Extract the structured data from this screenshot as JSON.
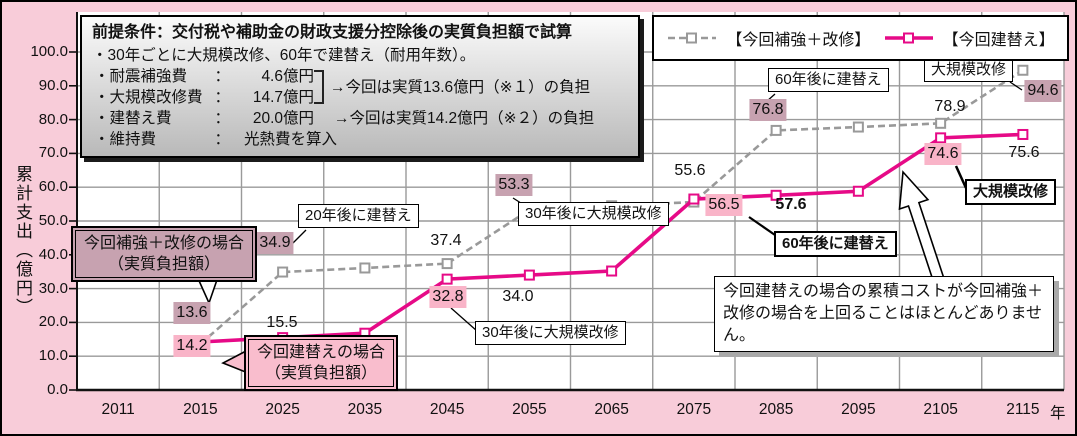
{
  "chart_data": {
    "type": "line",
    "x_categories": [
      "2011",
      "2015",
      "2025",
      "2035",
      "2045",
      "2055",
      "2065",
      "2075",
      "2085",
      "2095",
      "2105",
      "2115"
    ],
    "x_unit": "年",
    "ylabel": "累計支出（億円）",
    "ylim": [
      0,
      100
    ],
    "ytick_step": 10,
    "grid": true,
    "legend_position": "top-right",
    "series": [
      {
        "name": "【今回補強＋改修】",
        "style": "dashed",
        "color": "#999999",
        "values": [
          null,
          13.6,
          34.9,
          36.1,
          37.4,
          53.3,
          54.5,
          55.6,
          76.8,
          77.8,
          78.9,
          94.6
        ]
      },
      {
        "name": "【今回建替え】",
        "style": "solid",
        "color": "#e60a87",
        "values": [
          null,
          14.2,
          15.5,
          16.8,
          32.8,
          34.0,
          35.2,
          56.5,
          57.6,
          58.8,
          74.6,
          75.6
        ]
      }
    ],
    "point_labels": [
      {
        "series": 0,
        "x": "2015",
        "text": "13.6",
        "highlight": "mauve"
      },
      {
        "series": 0,
        "x": "2025",
        "text": "34.9",
        "highlight": "mauve"
      },
      {
        "series": 0,
        "x": "2045",
        "text": "37.4",
        "highlight": "none"
      },
      {
        "series": 0,
        "x": "2055",
        "text": "53.3",
        "highlight": "mauve"
      },
      {
        "series": 0,
        "x": "2075",
        "text": "55.6",
        "highlight": "none"
      },
      {
        "series": 0,
        "x": "2085",
        "text": "76.8",
        "highlight": "mauve"
      },
      {
        "series": 0,
        "x": "2105",
        "text": "78.9",
        "highlight": "none"
      },
      {
        "series": 0,
        "x": "2115",
        "text": "94.6",
        "highlight": "mauve"
      },
      {
        "series": 1,
        "x": "2015",
        "text": "14.2",
        "highlight": "pink"
      },
      {
        "series": 1,
        "x": "2025",
        "text": "15.5",
        "highlight": "none"
      },
      {
        "series": 1,
        "x": "2045",
        "text": "32.8",
        "highlight": "pink"
      },
      {
        "series": 1,
        "x": "2055",
        "text": "34.0",
        "highlight": "none"
      },
      {
        "series": 1,
        "x": "2075",
        "text": "56.5",
        "highlight": "pink"
      },
      {
        "series": 1,
        "x": "2085",
        "text": "57.6",
        "highlight": "bold"
      },
      {
        "series": 1,
        "x": "2105",
        "text": "74.6",
        "highlight": "pink"
      },
      {
        "series": 1,
        "x": "2115",
        "text": "75.6",
        "highlight": "none"
      }
    ]
  },
  "colors": {
    "reinforce_series": "#999999",
    "rebuild_series": "#e60a87",
    "highlight_mauve": "#c7a2b0",
    "highlight_pink": "#f9b4c8",
    "figure_bg": "#f8ccd9",
    "grid": "#9a9a9a",
    "axis": "#111111"
  },
  "legend": {
    "items": [
      {
        "label": "【今回補強＋改修】"
      },
      {
        "label": "【今回建替え】"
      }
    ]
  },
  "precondition": {
    "title": "前提条件：交付税や補助金の財政支援分控除後の実質負担額で試算",
    "line1": "・30年ごとに大規模改修、60年で建替え（耐用年数）。",
    "colon": "：",
    "items": [
      {
        "label": "・耐震補強費",
        "value": "4.6億円"
      },
      {
        "label": "・大規模改修費",
        "value": "14.7億円"
      },
      {
        "label": "・建替え費",
        "value": "20.0億円"
      },
      {
        "label": "・維持費",
        "value": "光熱費を算入"
      }
    ],
    "brace_note": "→今回は実質13.6億円（※１）の負担",
    "rebuild_note": "→今回は実質14.2億円（※２）の負担"
  },
  "annotations": {
    "rebuild_after_20y": "20年後に建替え",
    "renovate_after_30y_top": "30年後に大規模改修",
    "rebuild_after_60y_top": "60年後に建替え",
    "renovate_top_right": "大規模改修",
    "renovate_after_30y_bottom": "30年後に大規模改修",
    "rebuild_after_60y_bottom": "60年後に建替え",
    "renovate_bottom_right": "大規模改修"
  },
  "callouts": {
    "reinforce_case": {
      "line1": "今回補強＋改修の場合",
      "line2": "（実質負担額）"
    },
    "rebuild_case": {
      "line1": "今回建替えの場合",
      "line2": "（実質負担額）"
    }
  },
  "note_box": {
    "text": "今回建替えの場合の累積コストが今回補強＋改修の場合を上回ることはほとんどありません。"
  }
}
